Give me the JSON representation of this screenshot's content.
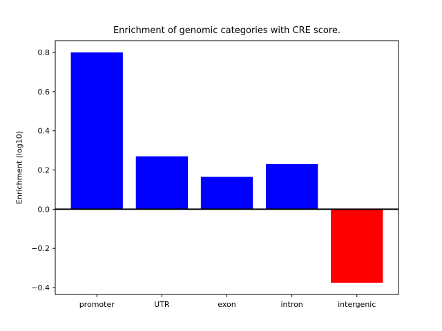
{
  "chart_data": {
    "type": "bar",
    "title": "Enrichment of genomic categories with CRE score.",
    "xlabel": "",
    "ylabel": "Enrichment (log10)",
    "categories": [
      "promoter",
      "UTR",
      "exon",
      "intron",
      "intergenic"
    ],
    "values": [
      0.8,
      0.27,
      0.165,
      0.23,
      -0.375
    ],
    "bar_colors": [
      "#0000ff",
      "#0000ff",
      "#0000ff",
      "#0000ff",
      "#ff0000"
    ],
    "positive_color": "#0000ff",
    "negative_color": "#ff0000",
    "yticks": [
      0.8,
      0.6,
      0.4,
      0.2,
      0.0,
      -0.2,
      -0.4
    ],
    "ytick_labels": [
      "0.8",
      "0.6",
      "0.4",
      "0.2",
      "0.0",
      "−0.2",
      "−0.4"
    ],
    "ylim": [
      -0.435,
      0.86
    ],
    "bar_width_fraction": 0.8,
    "x_margin": 0.64,
    "zero_line": true,
    "grid": false,
    "legend_position": "none",
    "axis_color": "#000000",
    "background_color": "#ffffff"
  }
}
